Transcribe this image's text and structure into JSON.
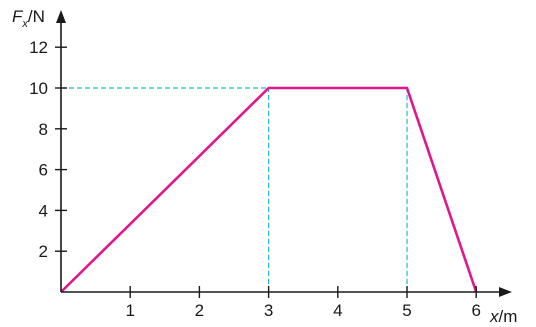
{
  "chart_data": {
    "type": "line",
    "xlabel": "x",
    "xunit": "/m",
    "ylabel": "F",
    "ylabel_sub": "x",
    "yunit": "/N",
    "xlim": [
      0,
      6.5
    ],
    "ylim": [
      0,
      13
    ],
    "xticks": [
      1,
      2,
      3,
      4,
      5,
      6
    ],
    "yticks": [
      2,
      4,
      6,
      8,
      10,
      12
    ],
    "grid": false,
    "series": [
      {
        "x": [
          0,
          3,
          5,
          6
        ],
        "y": [
          0,
          10,
          10,
          0
        ],
        "color": "#e0168c"
      }
    ],
    "guides": [
      {
        "type": "horizontal",
        "y": 10,
        "x_from": 0,
        "x_to": 5
      },
      {
        "type": "vertical",
        "x": 3,
        "y_from": 0,
        "y_to": 10
      },
      {
        "type": "vertical",
        "x": 5,
        "y_from": 0,
        "y_to": 10
      }
    ],
    "guide_color": "#26b3d4"
  }
}
